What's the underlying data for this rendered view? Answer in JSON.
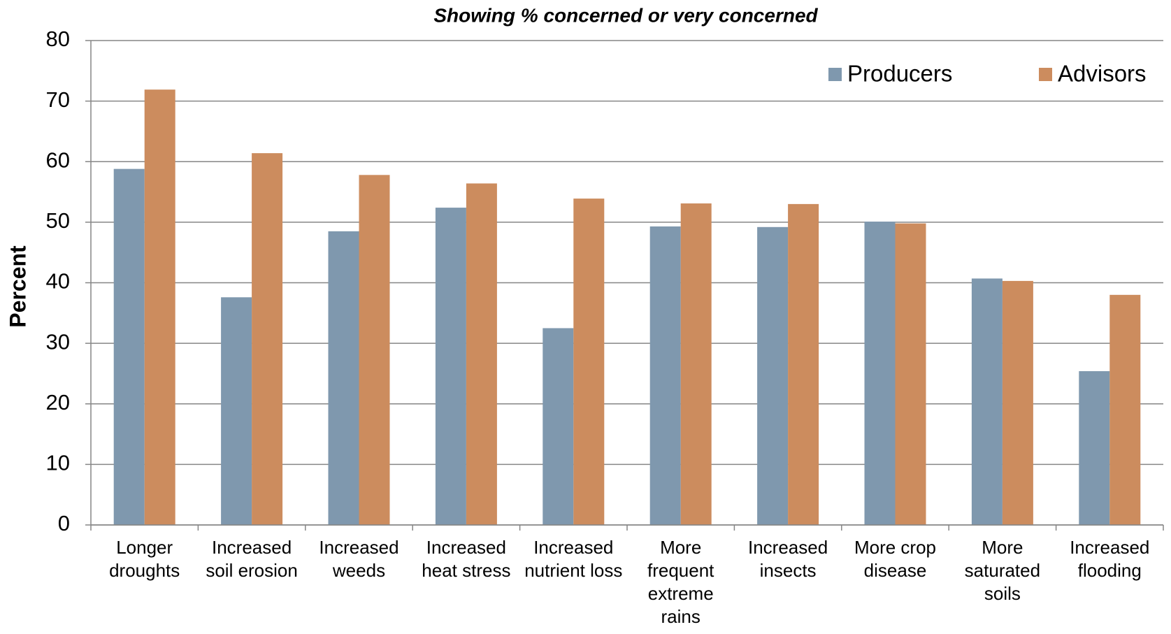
{
  "chart_data": {
    "type": "bar",
    "title": "Showing % concerned or very concerned",
    "y_label": "Percent",
    "categories": [
      "Longer droughts",
      "Increased soil erosion",
      "Increased weeds",
      "Increased heat stress",
      "Increased nutrient loss",
      "More frequent extreme rains",
      "Increased insects",
      "More crop disease",
      "More saturated soils",
      "Increased flooding"
    ],
    "series": [
      {
        "name": "Producers",
        "color": "#7f98ae",
        "values": [
          58.8,
          37.6,
          48.5,
          52.4,
          32.5,
          49.3,
          49.2,
          50.1,
          40.7,
          25.4
        ]
      },
      {
        "name": "Advisors",
        "color": "#cc8c5e",
        "values": [
          71.9,
          61.4,
          57.8,
          56.4,
          53.9,
          53.1,
          53.0,
          49.8,
          40.3,
          38.0
        ]
      }
    ],
    "ylim": [
      0,
      80
    ],
    "yticks": [
      0,
      10,
      20,
      30,
      40,
      50,
      60,
      70,
      80
    ],
    "grid": true,
    "legend": "top-right"
  }
}
